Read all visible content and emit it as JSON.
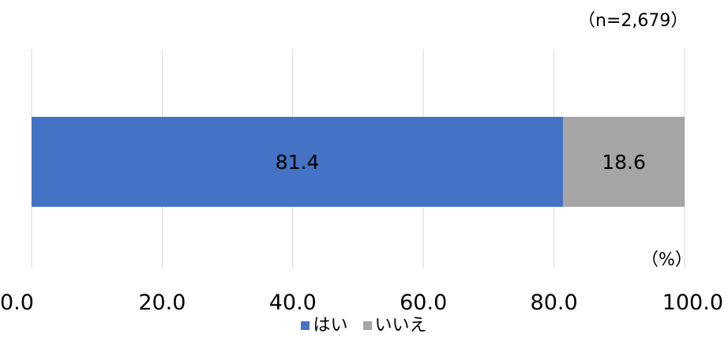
{
  "chart_data": {
    "type": "bar",
    "orientation": "horizontal",
    "stacked": true,
    "categories": [
      ""
    ],
    "series": [
      {
        "name": "はい",
        "values": [
          81.4
        ],
        "color": "#4472C4"
      },
      {
        "name": "いいえ",
        "values": [
          18.6
        ],
        "color": "#A5A5A5"
      }
    ],
    "data_labels": [
      "81.4",
      "18.6"
    ],
    "x_ticks": [
      "0.0",
      "20.0",
      "40.0",
      "60.0",
      "80.0",
      "100.0"
    ],
    "xlim": [
      0,
      100
    ],
    "grid": "vertical",
    "legend_position": "bottom",
    "sample_note": "（n=2,679）",
    "unit_note": "（%）"
  }
}
